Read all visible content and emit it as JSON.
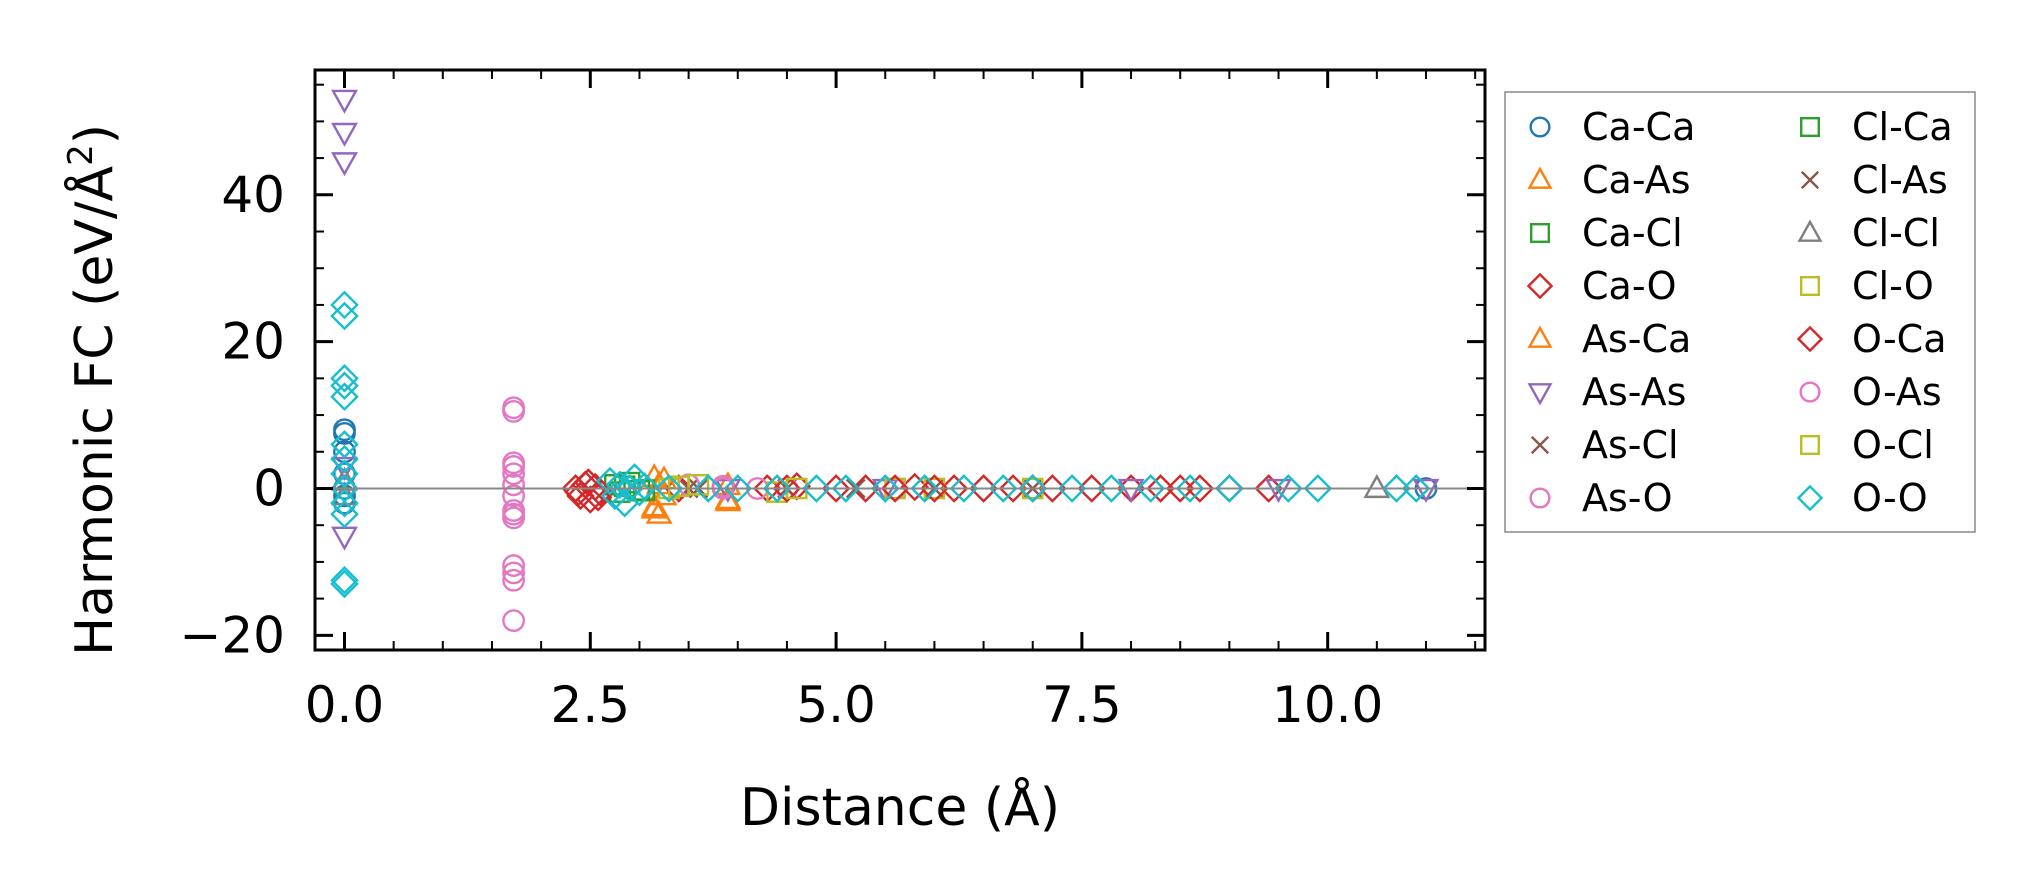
{
  "chart_data": {
    "type": "scatter",
    "xlabel": "Distance (Å)",
    "ylabel": "Harmonic FC (eV/Å²)",
    "ylabel_main": "Harmonic FC (eV/Å",
    "ylabel_sup": "2",
    "ylabel_end": ")",
    "xlim": [
      -0.3,
      11.6
    ],
    "ylim": [
      -22,
      57
    ],
    "xticks": [
      0.0,
      2.5,
      5.0,
      7.5,
      10.0
    ],
    "xtick_labels": [
      "0.0",
      "2.5",
      "5.0",
      "7.5",
      "10.0"
    ],
    "yticks": [
      -20,
      0,
      20,
      40
    ],
    "ytick_labels": [
      "−20",
      "0",
      "20",
      "40"
    ],
    "zero_line": true,
    "grid": false,
    "legend_position": "outside-right",
    "series": [
      {
        "name": "Ca-Ca",
        "marker": "circle",
        "color": "#1f77b4",
        "points": [
          [
            0,
            8
          ],
          [
            0,
            7.5
          ],
          [
            0,
            5
          ],
          [
            0,
            2
          ],
          [
            0,
            0
          ],
          [
            0,
            -1
          ],
          [
            0,
            -2
          ],
          [
            11.0,
            0
          ]
        ]
      },
      {
        "name": "Ca-As",
        "marker": "triangle-up",
        "color": "#ff7f0e",
        "points": [
          [
            3.15,
            1.5
          ],
          [
            3.2,
            0.5
          ],
          [
            3.15,
            -2.5
          ],
          [
            3.2,
            -3.5
          ],
          [
            3.25,
            -1
          ],
          [
            3.9,
            -1.8
          ],
          [
            3.9,
            0.4
          ]
        ]
      },
      {
        "name": "Ca-Cl",
        "marker": "square",
        "color": "#2ca02c",
        "points": [
          [
            2.75,
            0.5
          ],
          [
            2.8,
            -0.5
          ],
          [
            2.9,
            0.8
          ],
          [
            3.0,
            -0.3
          ]
        ]
      },
      {
        "name": "Ca-O",
        "marker": "diamond",
        "color": "#d62728",
        "points": [
          [
            2.35,
            0
          ],
          [
            2.4,
            -1
          ],
          [
            2.45,
            0.5
          ],
          [
            2.5,
            -1.5
          ],
          [
            2.55,
            0.2
          ],
          [
            2.6,
            -0.5
          ],
          [
            3.4,
            0
          ],
          [
            4.3,
            0
          ],
          [
            4.6,
            0.3
          ],
          [
            5.0,
            0
          ],
          [
            5.3,
            0
          ],
          [
            5.8,
            0.2
          ],
          [
            6.2,
            0
          ],
          [
            6.5,
            0
          ],
          [
            6.8,
            0
          ],
          [
            7.2,
            0
          ],
          [
            7.6,
            0
          ],
          [
            8.0,
            0
          ],
          [
            8.3,
            0
          ],
          [
            8.7,
            0
          ],
          [
            9.0,
            0
          ],
          [
            9.4,
            0
          ]
        ]
      },
      {
        "name": "As-Ca",
        "marker": "triangle-up",
        "color": "#ff7f0e",
        "points": [
          [
            3.15,
            -2.8
          ],
          [
            3.25,
            1.2
          ],
          [
            3.9,
            -1.5
          ]
        ]
      },
      {
        "name": "As-As",
        "marker": "triangle-down",
        "color": "#9467bd",
        "points": [
          [
            0,
            53
          ],
          [
            0,
            48.5
          ],
          [
            0,
            44.5
          ],
          [
            0,
            3
          ],
          [
            0,
            -6.5
          ],
          [
            3.9,
            0
          ],
          [
            5.5,
            0
          ],
          [
            8.0,
            0
          ],
          [
            9.5,
            0
          ],
          [
            11.0,
            0
          ]
        ]
      },
      {
        "name": "As-Cl",
        "marker": "x",
        "color": "#8c564b",
        "points": [
          [
            3.5,
            0
          ],
          [
            4.5,
            0
          ],
          [
            6.0,
            0
          ],
          [
            7.0,
            0
          ]
        ]
      },
      {
        "name": "As-O",
        "marker": "circle",
        "color": "#e377c2",
        "points": [
          [
            1.72,
            11
          ],
          [
            1.72,
            10.5
          ],
          [
            1.72,
            3.5
          ],
          [
            1.72,
            2
          ],
          [
            1.72,
            0.5
          ],
          [
            1.72,
            -1
          ],
          [
            1.72,
            -3
          ],
          [
            1.72,
            -4
          ],
          [
            1.72,
            -10.5
          ],
          [
            1.72,
            -11.5
          ],
          [
            1.72,
            -12.5
          ],
          [
            1.72,
            -18
          ],
          [
            3.5,
            0.5
          ],
          [
            3.85,
            0
          ],
          [
            4.2,
            0
          ],
          [
            4.5,
            0
          ],
          [
            5.6,
            0
          ]
        ]
      },
      {
        "name": "Cl-Ca",
        "marker": "square",
        "color": "#2ca02c",
        "points": [
          [
            2.85,
            0.3
          ],
          [
            3.05,
            -0.2
          ]
        ]
      },
      {
        "name": "Cl-As",
        "marker": "x",
        "color": "#8c564b",
        "points": [
          [
            3.6,
            0
          ],
          [
            5.2,
            0
          ]
        ]
      },
      {
        "name": "Cl-Cl",
        "marker": "triangle-up",
        "color": "#7f7f7f",
        "points": [
          [
            0,
            1
          ],
          [
            0,
            -1
          ],
          [
            10.5,
            0
          ]
        ]
      },
      {
        "name": "Cl-O",
        "marker": "square",
        "color": "#bcbd22",
        "points": [
          [
            3.3,
            0
          ],
          [
            3.6,
            0.5
          ],
          [
            4.4,
            -0.5
          ],
          [
            5.6,
            0
          ],
          [
            6.0,
            0
          ],
          [
            7.0,
            0
          ]
        ]
      },
      {
        "name": "O-Ca",
        "marker": "diamond",
        "color": "#d62728",
        "points": [
          [
            2.38,
            -0.5
          ],
          [
            2.48,
            0.8
          ],
          [
            2.58,
            -1.2
          ],
          [
            4.5,
            0
          ],
          [
            5.6,
            0
          ],
          [
            6.0,
            0
          ],
          [
            7.0,
            0
          ],
          [
            8.5,
            0
          ]
        ]
      },
      {
        "name": "O-As",
        "marker": "circle",
        "color": "#e377c2",
        "points": [
          [
            1.72,
            3
          ],
          [
            1.72,
            -3.5
          ],
          [
            3.85,
            0.3
          ]
        ]
      },
      {
        "name": "O-Cl",
        "marker": "square",
        "color": "#bcbd22",
        "points": [
          [
            3.4,
            0.3
          ],
          [
            4.6,
            0
          ]
        ]
      },
      {
        "name": "O-O",
        "marker": "diamond",
        "color": "#17becf",
        "points": [
          [
            0,
            25
          ],
          [
            0,
            23.5
          ],
          [
            0,
            15
          ],
          [
            0,
            14
          ],
          [
            0,
            12.5
          ],
          [
            0,
            6
          ],
          [
            0,
            4
          ],
          [
            0,
            2
          ],
          [
            0,
            0
          ],
          [
            0,
            -2
          ],
          [
            0,
            -3.5
          ],
          [
            0,
            -12.5
          ],
          [
            0,
            -13
          ],
          [
            2.7,
            1
          ],
          [
            2.75,
            -1
          ],
          [
            2.8,
            0.5
          ],
          [
            2.85,
            -2
          ],
          [
            2.9,
            0
          ],
          [
            2.95,
            1.5
          ],
          [
            3.0,
            -0.5
          ],
          [
            3.05,
            0.3
          ],
          [
            3.3,
            0
          ],
          [
            3.7,
            0
          ],
          [
            4.0,
            0
          ],
          [
            4.4,
            0
          ],
          [
            4.8,
            0
          ],
          [
            5.1,
            0
          ],
          [
            5.5,
            0
          ],
          [
            5.9,
            0
          ],
          [
            6.3,
            0
          ],
          [
            6.7,
            0
          ],
          [
            7.0,
            0
          ],
          [
            7.4,
            0
          ],
          [
            7.8,
            0
          ],
          [
            8.2,
            0
          ],
          [
            8.6,
            0
          ],
          [
            9.0,
            0
          ],
          [
            9.6,
            0
          ],
          [
            9.9,
            0
          ],
          [
            10.7,
            0
          ],
          [
            10.9,
            0
          ]
        ]
      }
    ]
  }
}
